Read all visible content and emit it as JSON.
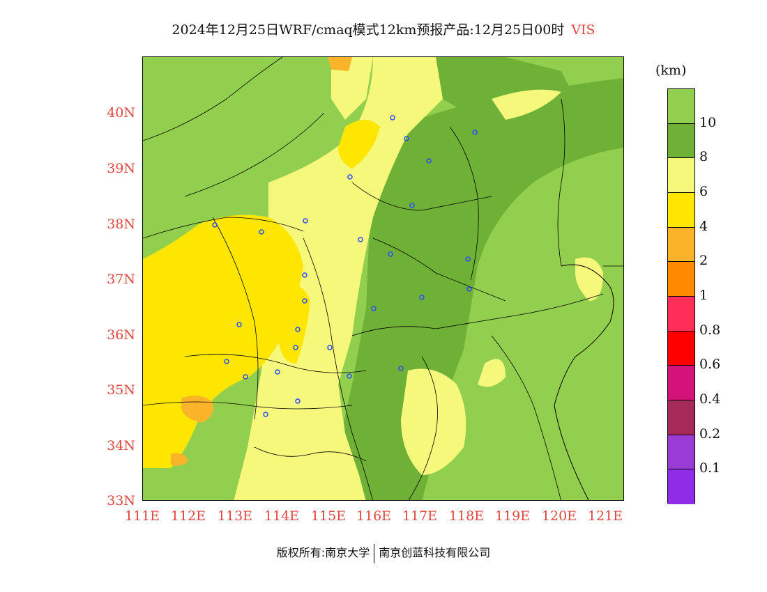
{
  "title": {
    "main": "2024年12月25日WRF/cmaq模式12km预报产品:12月25日00时",
    "variable": "VIS"
  },
  "colors": {
    "axis_text": "#e2473f",
    "background_map": "#93cf4f"
  },
  "legend": {
    "unit": "(km)",
    "colors": [
      "#93cf4f",
      "#6fb037",
      "#f5f87a",
      "#ffe600",
      "#fbb32a",
      "#ff8a00",
      "#fe2d5a",
      "#ff0000",
      "#d4137a",
      "#a52a5a",
      "#9b3bd6",
      "#8f2ce8"
    ],
    "labels": [
      "10",
      "8",
      "6",
      "4",
      "2",
      "1",
      "0.8",
      "0.6",
      "0.4",
      "0.2",
      "0.1"
    ]
  },
  "axes": {
    "y_ticks": [
      "40N",
      "39N",
      "38N",
      "37N",
      "36N",
      "35N",
      "34N",
      "33N"
    ],
    "x_ticks": [
      "111E",
      "112E",
      "113E",
      "114E",
      "115E",
      "116E",
      "117E",
      "118E",
      "119E",
      "120E",
      "121E"
    ]
  },
  "footer": {
    "left": "版权所有:南京大学",
    "right": "南京创蓝科技有限公司"
  }
}
